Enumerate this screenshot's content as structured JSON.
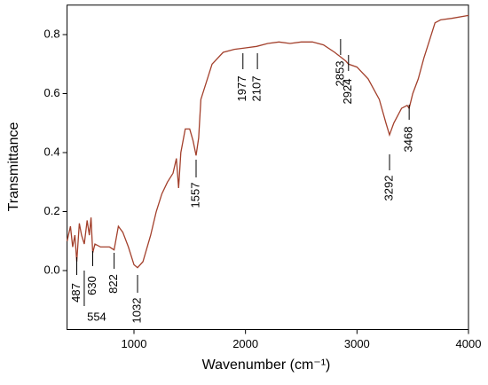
{
  "chart_data": {
    "type": "line",
    "x_label": "Wavenumber (cm⁻¹)",
    "y_label": "Transmittance",
    "xlim": [
      400,
      4000
    ],
    "xticks": [
      1000,
      2000,
      3000,
      4000
    ],
    "ylim": [
      -0.2,
      0.9
    ],
    "yticks": [
      {
        "value": 0,
        "label": "0.0"
      },
      0.2,
      0.4,
      0.6,
      0.8
    ],
    "series": [
      {
        "color": "#a3402c",
        "x": [
          400,
          430,
          450,
          470,
          487,
          510,
          530,
          554,
          580,
          600,
          615,
          630,
          650,
          700,
          780,
          822,
          860,
          900,
          950,
          1000,
          1032,
          1080,
          1150,
          1200,
          1250,
          1300,
          1350,
          1380,
          1400,
          1420,
          1460,
          1500,
          1530,
          1557,
          1580,
          1600,
          1650,
          1700,
          1800,
          1900,
          2000,
          2100,
          2200,
          2300,
          2400,
          2500,
          2600,
          2700,
          2800,
          2900,
          2924,
          3000,
          3100,
          3200,
          3260,
          3292,
          3330,
          3400,
          3450,
          3468,
          3500,
          3550,
          3600,
          3650,
          3700,
          3750,
          3850,
          4000
        ],
        "values": [
          0.1,
          0.15,
          0.08,
          0.12,
          0.03,
          0.16,
          0.12,
          0.09,
          0.17,
          0.12,
          0.18,
          0.06,
          0.09,
          0.08,
          0.08,
          0.07,
          0.15,
          0.13,
          0.08,
          0.02,
          0.01,
          0.03,
          0.12,
          0.2,
          0.26,
          0.3,
          0.33,
          0.38,
          0.28,
          0.4,
          0.48,
          0.48,
          0.44,
          0.39,
          0.45,
          0.58,
          0.64,
          0.7,
          0.74,
          0.75,
          0.755,
          0.76,
          0.77,
          0.775,
          0.77,
          0.775,
          0.775,
          0.765,
          0.74,
          0.71,
          0.7,
          0.69,
          0.65,
          0.58,
          0.5,
          0.46,
          0.5,
          0.55,
          0.56,
          0.55,
          0.6,
          0.65,
          0.72,
          0.78,
          0.84,
          0.85,
          0.855,
          0.865
        ]
      }
    ],
    "peaks": [
      487,
      554,
      630,
      822,
      1032,
      1557,
      1977,
      2107,
      2853,
      2924,
      3292,
      3468
    ]
  }
}
